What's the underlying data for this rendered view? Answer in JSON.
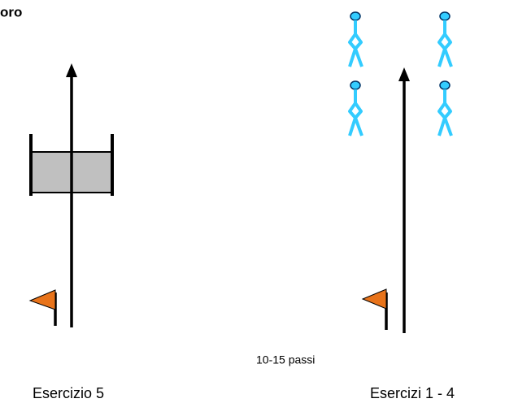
{
  "header": {
    "title": "oro"
  },
  "labels": {
    "distance": "10-15 passi"
  },
  "captions": [
    "Esercizio 5",
    "Esercizi 1 - 4"
  ]
}
